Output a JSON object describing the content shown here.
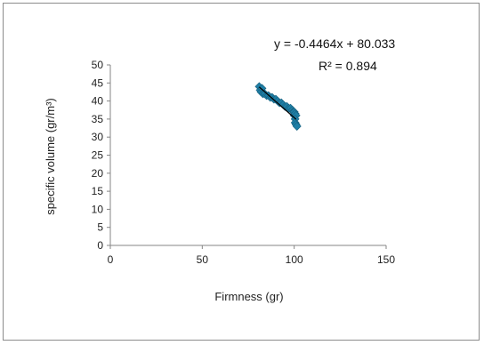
{
  "chart_data": {
    "type": "scatter",
    "title": "",
    "xlabel": "Firmness (gr)",
    "ylabel": "specific volume (gr/m³)",
    "xlim": [
      0,
      150
    ],
    "ylim": [
      0,
      50
    ],
    "xticks": [
      0,
      50,
      100,
      150
    ],
    "yticks": [
      0,
      5,
      10,
      15,
      20,
      25,
      30,
      35,
      40,
      45,
      50
    ],
    "grid": false,
    "legend": "none",
    "marker_color": "#1f7fa6",
    "trendline": {
      "slope": -0.4464,
      "intercept": 80.033,
      "x_range": [
        81,
        101
      ],
      "color": "#000000",
      "equation_label": "y = -0.4464x + 80.033",
      "r2_label": "R² = 0.894"
    },
    "series": [
      {
        "points": [
          [
            81,
            44
          ],
          [
            81.5,
            43
          ],
          [
            82,
            42.5
          ],
          [
            82.5,
            43.5
          ],
          [
            83,
            42
          ],
          [
            84,
            42
          ],
          [
            85,
            41.5
          ],
          [
            86,
            41.5
          ],
          [
            87,
            41
          ],
          [
            88,
            41
          ],
          [
            89,
            40.5
          ],
          [
            90,
            40.5
          ],
          [
            91,
            40
          ],
          [
            92,
            39.5
          ],
          [
            93,
            39.5
          ],
          [
            94,
            39
          ],
          [
            95,
            38.5
          ],
          [
            96,
            38.5
          ],
          [
            97,
            38
          ],
          [
            98,
            38
          ],
          [
            99,
            37.5
          ],
          [
            99.5,
            37
          ],
          [
            100,
            37
          ],
          [
            100,
            36
          ],
          [
            100.5,
            36.5
          ],
          [
            101,
            36
          ],
          [
            100.5,
            35
          ],
          [
            100.5,
            34
          ],
          [
            101,
            33.5
          ],
          [
            101.5,
            33
          ]
        ]
      }
    ]
  }
}
